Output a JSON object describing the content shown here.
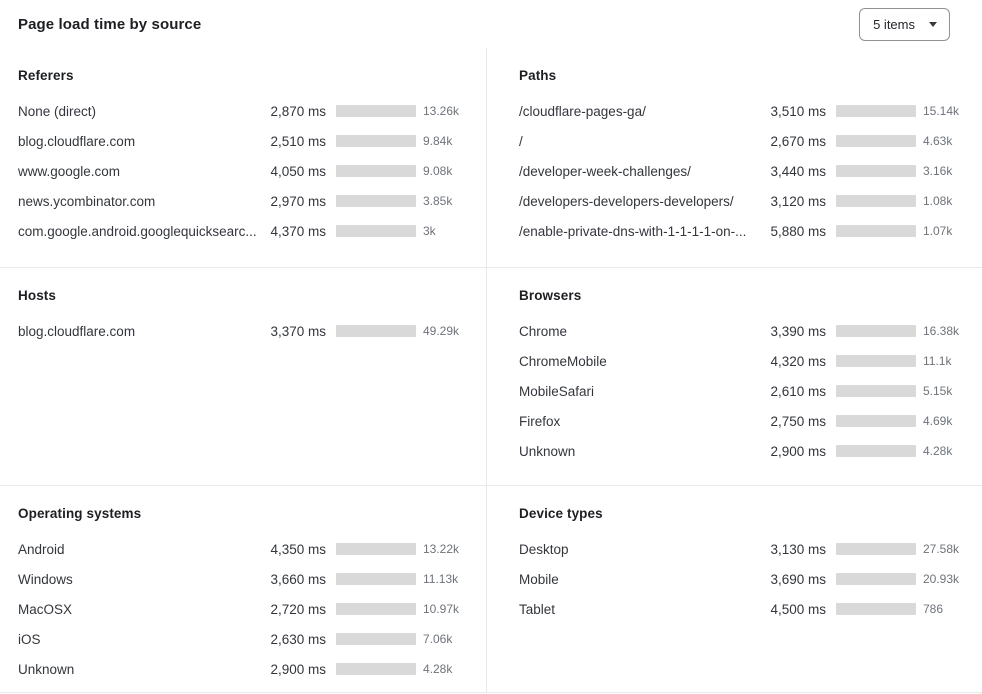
{
  "header": {
    "title": "Page load time by source",
    "items_dropdown": {
      "value": "5 items"
    }
  },
  "colors": {
    "bar_fill": "#3c6fe0",
    "bar_track": "#d9d9d9",
    "divider": "#e9e9ea",
    "title_text": "#1d1f23",
    "label_text": "#33363c",
    "count_text": "#6e737b",
    "dropdown_border": "#919191"
  },
  "chart_data": [
    {
      "type": "bar",
      "title": "Referers",
      "unit": "ms",
      "bar_scale_max": 7250,
      "rows": [
        {
          "label": "None (direct)",
          "ms": 2870,
          "ms_display": "2,870 ms",
          "count_display": "13.26k"
        },
        {
          "label": "blog.cloudflare.com",
          "ms": 2510,
          "ms_display": "2,510 ms",
          "count_display": "9.84k"
        },
        {
          "label": "www.google.com",
          "ms": 4050,
          "ms_display": "4,050 ms",
          "count_display": "9.08k"
        },
        {
          "label": "news.ycombinator.com",
          "ms": 2970,
          "ms_display": "2,970 ms",
          "count_display": "3.85k"
        },
        {
          "label": "com.google.android.googlequicksearc...",
          "ms": 4370,
          "ms_display": "4,370 ms",
          "count_display": "3k"
        }
      ]
    },
    {
      "type": "bar",
      "title": "Paths",
      "unit": "ms",
      "bar_scale_max": 6520,
      "rows": [
        {
          "label": "/cloudflare-pages-ga/",
          "ms": 3510,
          "ms_display": "3,510 ms",
          "count_display": "15.14k"
        },
        {
          "label": "/",
          "ms": 2670,
          "ms_display": "2,670 ms",
          "count_display": "4.63k"
        },
        {
          "label": "/developer-week-challenges/",
          "ms": 3440,
          "ms_display": "3,440 ms",
          "count_display": "3.16k"
        },
        {
          "label": "/developers-developers-developers/",
          "ms": 3120,
          "ms_display": "3,120 ms",
          "count_display": "1.08k"
        },
        {
          "label": "/enable-private-dns-with-1-1-1-1-on-...",
          "ms": 5880,
          "ms_display": "5,880 ms",
          "count_display": "1.07k"
        }
      ]
    },
    {
      "type": "bar",
      "title": "Hosts",
      "unit": "ms",
      "bar_scale_max": 3370,
      "rows": [
        {
          "label": "blog.cloudflare.com",
          "ms": 3370,
          "ms_display": "3,370 ms",
          "count_display": "49.29k"
        }
      ]
    },
    {
      "type": "bar",
      "title": "Browsers",
      "unit": "ms",
      "bar_scale_max": 6050,
      "rows": [
        {
          "label": "Chrome",
          "ms": 3390,
          "ms_display": "3,390 ms",
          "count_display": "16.38k"
        },
        {
          "label": "ChromeMobile",
          "ms": 4320,
          "ms_display": "4,320 ms",
          "count_display": "11.1k"
        },
        {
          "label": "MobileSafari",
          "ms": 2610,
          "ms_display": "2,610 ms",
          "count_display": "5.15k"
        },
        {
          "label": "Firefox",
          "ms": 2750,
          "ms_display": "2,750 ms",
          "count_display": "4.69k"
        },
        {
          "label": "Unknown",
          "ms": 2900,
          "ms_display": "2,900 ms",
          "count_display": "4.28k"
        }
      ]
    },
    {
      "type": "bar",
      "title": "Operating systems",
      "unit": "ms",
      "bar_scale_max": 4640,
      "rows": [
        {
          "label": "Android",
          "ms": 4350,
          "ms_display": "4,350 ms",
          "count_display": "13.22k"
        },
        {
          "label": "Windows",
          "ms": 3660,
          "ms_display": "3,660 ms",
          "count_display": "11.13k"
        },
        {
          "label": "MacOSX",
          "ms": 2720,
          "ms_display": "2,720 ms",
          "count_display": "10.97k"
        },
        {
          "label": "iOS",
          "ms": 2630,
          "ms_display": "2,630 ms",
          "count_display": "7.06k"
        },
        {
          "label": "Unknown",
          "ms": 2900,
          "ms_display": "2,900 ms",
          "count_display": "4.28k"
        }
      ]
    },
    {
      "type": "bar",
      "title": "Device types",
      "unit": "ms",
      "bar_scale_max": 4500,
      "rows": [
        {
          "label": "Desktop",
          "ms": 3130,
          "ms_display": "3,130 ms",
          "count_display": "27.58k"
        },
        {
          "label": "Mobile",
          "ms": 3690,
          "ms_display": "3,690 ms",
          "count_display": "20.93k"
        },
        {
          "label": "Tablet",
          "ms": 4500,
          "ms_display": "4,500 ms",
          "count_display": "786"
        }
      ]
    }
  ]
}
